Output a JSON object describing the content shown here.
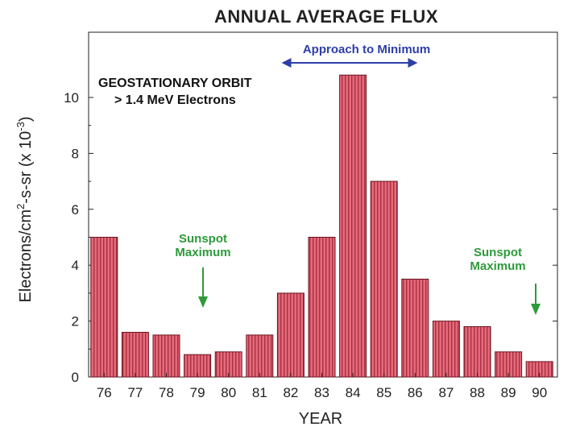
{
  "chart_data": {
    "type": "bar",
    "title": "ANNUAL AVERAGE FLUX",
    "xlabel": "YEAR",
    "ylabel": {
      "prefix": "Electrons/cm",
      "sup1": "2",
      "middle": "-s-sr (x 10",
      "sup2": "-3",
      "suffix": ")"
    },
    "categories": [
      "76",
      "77",
      "78",
      "79",
      "80",
      "81",
      "82",
      "83",
      "84",
      "85",
      "86",
      "87",
      "88",
      "89",
      "90"
    ],
    "values": [
      5.0,
      1.6,
      1.5,
      0.8,
      0.9,
      1.5,
      3.0,
      5.0,
      10.8,
      7.0,
      3.5,
      2.0,
      1.8,
      0.9,
      0.55
    ],
    "ylim": [
      0,
      12
    ],
    "yticks": [
      0,
      2,
      4,
      6,
      8,
      10
    ],
    "bar_color": "#d9576b",
    "bar_stripe_color": "#a8303f",
    "annotations": {
      "orbit_line1": "GEOSTATIONARY ORBIT",
      "orbit_line2": "> 1.4 MeV Electrons",
      "approach": "Approach to Minimum",
      "sunspot_left": [
        "Sunspot",
        "Maximum"
      ],
      "sunspot_right": [
        "Sunspot",
        "Maximum"
      ]
    },
    "colors": {
      "green": "#2e9a3a",
      "blue": "#2d3ea8"
    }
  }
}
